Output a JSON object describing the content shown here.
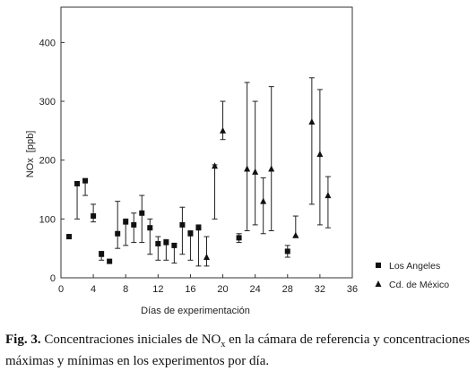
{
  "chart_data": {
    "type": "scatter",
    "xlabel": "Días de experimentación",
    "ylabel_main": "NOx",
    "ylabel_unit": "[ppb]",
    "xlim": [
      0,
      36
    ],
    "ylim": [
      0,
      460
    ],
    "xticks": [
      0,
      4,
      8,
      12,
      16,
      20,
      24,
      28,
      32,
      36
    ],
    "yticks": [
      0,
      100,
      200,
      300,
      400
    ],
    "grid": false,
    "legend_position": "bottom-right",
    "series": [
      {
        "name": "Los Angeles",
        "marker": "square",
        "points": [
          {
            "x": 1,
            "y": 70,
            "min": 70,
            "max": 70
          },
          {
            "x": 2,
            "y": 160,
            "min": 100,
            "max": 162
          },
          {
            "x": 3,
            "y": 165,
            "min": 140,
            "max": 168
          },
          {
            "x": 4,
            "y": 105,
            "min": 95,
            "max": 125
          },
          {
            "x": 5,
            "y": 40,
            "min": 30,
            "max": 45
          },
          {
            "x": 6,
            "y": 28,
            "min": 28,
            "max": 28
          },
          {
            "x": 7,
            "y": 75,
            "min": 50,
            "max": 130
          },
          {
            "x": 8,
            "y": 95,
            "min": 55,
            "max": 100
          },
          {
            "x": 9,
            "y": 90,
            "min": 60,
            "max": 110
          },
          {
            "x": 10,
            "y": 110,
            "min": 60,
            "max": 140
          },
          {
            "x": 11,
            "y": 85,
            "min": 40,
            "max": 100
          },
          {
            "x": 12,
            "y": 58,
            "min": 30,
            "max": 70
          },
          {
            "x": 13,
            "y": 60,
            "min": 30,
            "max": 65
          },
          {
            "x": 14,
            "y": 55,
            "min": 25,
            "max": 58
          },
          {
            "x": 15,
            "y": 90,
            "min": 40,
            "max": 120
          },
          {
            "x": 16,
            "y": 75,
            "min": 30,
            "max": 80
          },
          {
            "x": 17,
            "y": 85,
            "min": 20,
            "max": 90
          },
          {
            "x": 22,
            "y": 68,
            "min": 60,
            "max": 75
          },
          {
            "x": 28,
            "y": 45,
            "min": 35,
            "max": 55
          }
        ]
      },
      {
        "name": "Cd. de México",
        "marker": "triangle",
        "points": [
          {
            "x": 18,
            "y": 35,
            "min": 20,
            "max": 70
          },
          {
            "x": 19,
            "y": 190,
            "min": 100,
            "max": 192
          },
          {
            "x": 20,
            "y": 250,
            "min": 235,
            "max": 300
          },
          {
            "x": 23,
            "y": 185,
            "min": 80,
            "max": 332
          },
          {
            "x": 24,
            "y": 180,
            "min": 90,
            "max": 300
          },
          {
            "x": 25,
            "y": 130,
            "min": 75,
            "max": 170
          },
          {
            "x": 26,
            "y": 185,
            "min": 80,
            "max": 325
          },
          {
            "x": 29,
            "y": 72,
            "min": 70,
            "max": 105
          },
          {
            "x": 31,
            "y": 265,
            "min": 125,
            "max": 340
          },
          {
            "x": 32,
            "y": 210,
            "min": 90,
            "max": 320
          },
          {
            "x": 33,
            "y": 140,
            "min": 85,
            "max": 172
          }
        ]
      }
    ]
  },
  "caption": {
    "label": "Fig. 3.",
    "text_1": " Concentraciones iniciales de NO",
    "text_sub": "x",
    "text_2": " en la cámara de referencia y concentraciones máximas y mínimas en los experimentos por día."
  }
}
